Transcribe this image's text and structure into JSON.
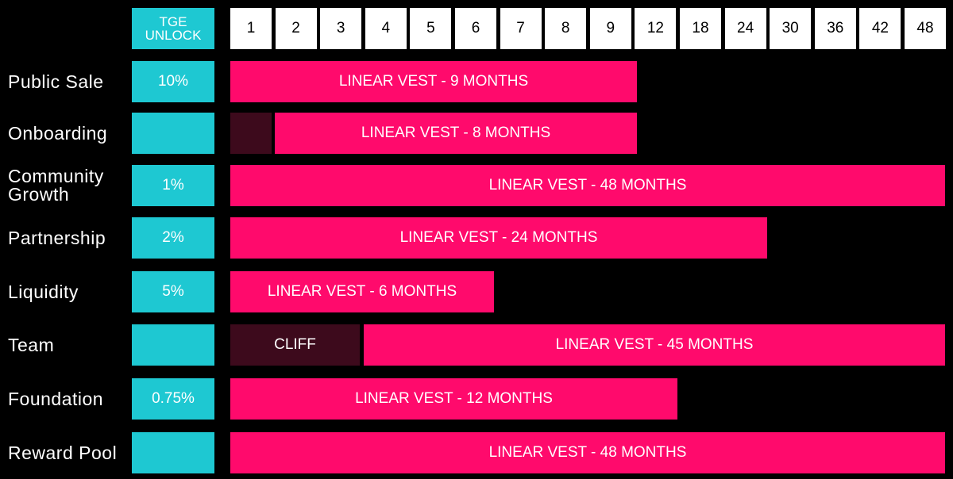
{
  "header": {
    "tge": "TGE UNLOCK",
    "months": [
      "1",
      "2",
      "3",
      "4",
      "5",
      "6",
      "7",
      "8",
      "9",
      "12",
      "18",
      "24",
      "30",
      "36",
      "42",
      "48"
    ]
  },
  "rows": [
    {
      "label": "Public Sale",
      "tge": "10%",
      "segments": [
        {
          "label": "LINEAR VEST - 9 MONTHS",
          "color": "#ff0a6c"
        }
      ]
    },
    {
      "label": "Onboarding",
      "tge": null,
      "segments": [
        {
          "color": "#3d0a1c"
        },
        {
          "label": "LINEAR VEST - 8 MONTHS",
          "color": "#ff0a6c"
        }
      ]
    },
    {
      "label": "Community Growth",
      "tge": "1%",
      "segments": [
        {
          "label": "LINEAR VEST - 48 MONTHS",
          "color": "#ff0a6c"
        }
      ]
    },
    {
      "label": "Partnership",
      "tge": "2%",
      "segments": [
        {
          "label": "LINEAR VEST - 24 MONTHS",
          "color": "#ff0a6c"
        }
      ]
    },
    {
      "label": "Liquidity",
      "tge": "5%",
      "segments": [
        {
          "label": "LINEAR VEST - 6 MONTHS",
          "color": "#ff0a6c"
        }
      ]
    },
    {
      "label": "Team",
      "tge": null,
      "segments": [
        {
          "label": "CLIFF",
          "color": "#3d0a1c"
        },
        {
          "label": "LINEAR VEST - 45 MONTHS",
          "color": "#ff0a6c"
        }
      ]
    },
    {
      "label": "Foundation",
      "tge": "0.75%",
      "segments": [
        {
          "label": "LINEAR VEST - 12 MONTHS",
          "color": "#ff0a6c"
        }
      ]
    },
    {
      "label": "Reward Pool",
      "tge": null,
      "segments": [
        {
          "label": "LINEAR VEST - 48 MONTHS",
          "color": "#ff0a6c"
        }
      ]
    }
  ]
}
